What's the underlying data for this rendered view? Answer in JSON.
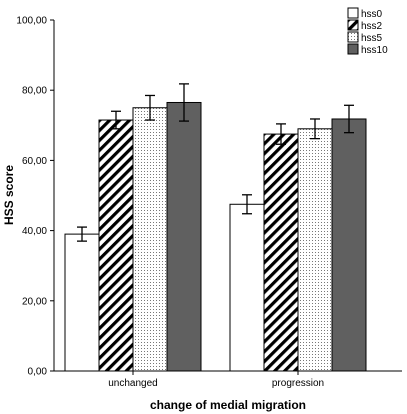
{
  "chart_data": {
    "type": "bar",
    "title": "",
    "xlabel": "change of medial migration",
    "ylabel": "HSS score",
    "ylim": [
      0,
      100
    ],
    "yticks": [
      "0,00",
      "20,00",
      "40,00",
      "60,00",
      "80,00",
      "100,00"
    ],
    "ytick_values": [
      0,
      20,
      40,
      60,
      80,
      100
    ],
    "grid": false,
    "legend_position": "top-right",
    "error_bars": true,
    "categories": [
      "unchanged",
      "progression"
    ],
    "series": [
      {
        "name": "hss0",
        "pattern": "white",
        "color": "#ffffff",
        "values": [
          39.0,
          47.5
        ],
        "err_low": [
          37.0,
          44.8
        ],
        "err_high": [
          41.0,
          50.2
        ]
      },
      {
        "name": "hss2",
        "pattern": "diagonal",
        "color": "#000000",
        "values": [
          71.5,
          67.5
        ],
        "err_low": [
          69.0,
          64.6
        ],
        "err_high": [
          74.0,
          70.4
        ]
      },
      {
        "name": "hss5",
        "pattern": "dotted",
        "color": "#888888",
        "values": [
          75.0,
          69.0
        ],
        "err_low": [
          71.5,
          66.2
        ],
        "err_high": [
          78.5,
          71.8
        ]
      },
      {
        "name": "hss10",
        "pattern": "solid",
        "color": "#606060",
        "values": [
          76.5,
          71.8
        ],
        "err_low": [
          71.2,
          67.9
        ],
        "err_high": [
          81.8,
          75.7
        ]
      }
    ]
  }
}
